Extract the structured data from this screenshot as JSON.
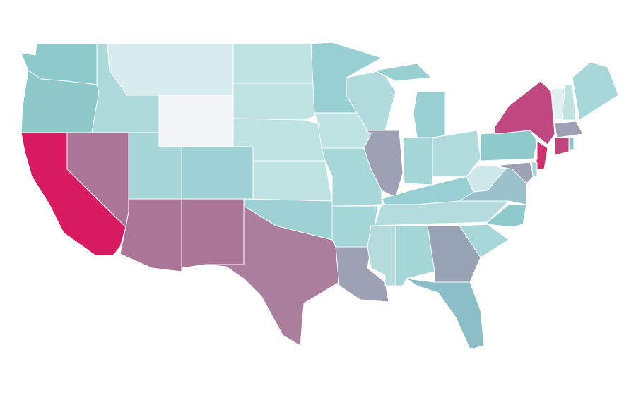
{
  "map": {
    "regions": [
      {
        "color": "#8ec9cc"
      },
      {
        "color": "#8ec8c9"
      },
      {
        "color": "#d81b60"
      },
      {
        "color": "#ab7597"
      },
      {
        "color": "#add9db"
      },
      {
        "color": "#d8ecee"
      },
      {
        "color": "#f2f3f4"
      },
      {
        "color": "#a7d6d8"
      },
      {
        "color": "#9dd1d3"
      },
      {
        "color": "#ab7597"
      },
      {
        "color": "#ab7597"
      },
      {
        "color": "#bfe2e3"
      },
      {
        "color": "#bfe2e3"
      },
      {
        "color": "#bfe2e3"
      },
      {
        "color": "#bfe2e3"
      },
      {
        "color": "#9dd1d3"
      },
      {
        "color": "#a97f9d"
      },
      {
        "color": "#98cfd2"
      },
      {
        "color": "#bfe2e3"
      },
      {
        "color": "#a8d7d9"
      },
      {
        "color": "#a4d6d8"
      },
      {
        "color": "#9ea0b4"
      },
      {
        "color": "#b1dbdd"
      },
      {
        "color": "#9ea0b4"
      },
      {
        "color": "#98cfd2"
      },
      {
        "color": "#98cfd2"
      },
      {
        "color": "#a4d6d8"
      },
      {
        "color": "#b1dbdd"
      },
      {
        "color": "#98cfd2"
      },
      {
        "color": "#b5dcdd"
      },
      {
        "color": "#b5dcdd"
      },
      {
        "color": "#a4d6d8"
      },
      {
        "color": "#97a2b5"
      },
      {
        "color": "#8cbec7"
      },
      {
        "color": "#a8d7d9"
      },
      {
        "color": "#8ec9cc"
      },
      {
        "color": "#9bc1cd"
      },
      {
        "color": "#cfe8e9"
      },
      {
        "color": "#8ec9cc"
      },
      {
        "color": "#c04880"
      },
      {
        "color": "#e0f0f0"
      },
      {
        "color": "#bfe2e3"
      },
      {
        "color": "#a8d7d9"
      },
      {
        "color": "#9ea0b4"
      },
      {
        "color": "#c0457c"
      },
      {
        "color": "#8ec9cc"
      },
      {
        "color": "#d0306e"
      },
      {
        "color": "#9ea0b4"
      },
      {
        "color": "#a8d7d9"
      }
    ]
  }
}
